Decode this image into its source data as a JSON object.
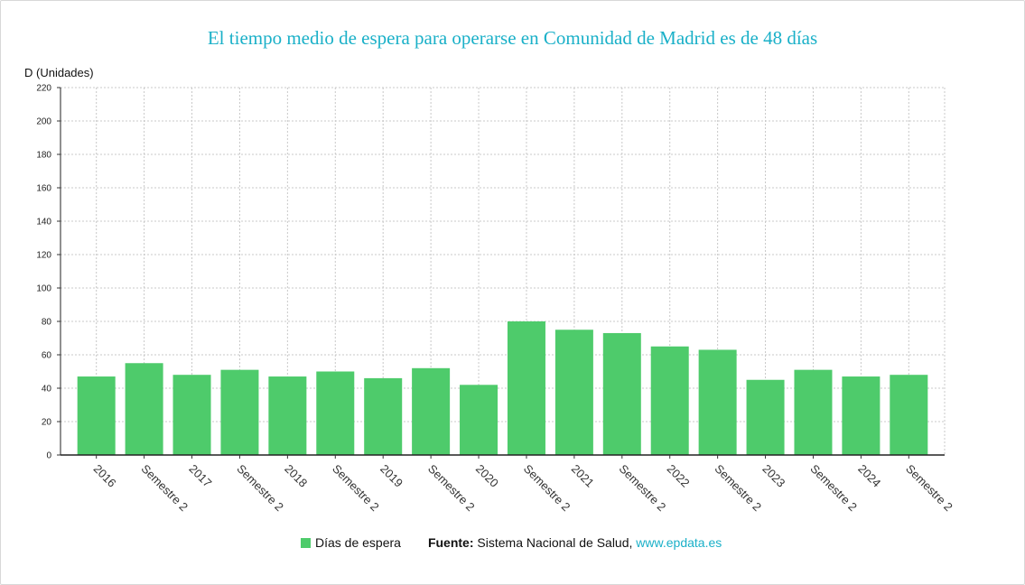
{
  "title": "El tiempo medio de espera para operarse en Comunidad de Madrid es de 48 días",
  "footer": {
    "source_label": "Fuente:",
    "source_text": "Sistema Nacional de Salud,",
    "source_link": "www.epdata.es"
  },
  "colors": {
    "bar": "#4ecb6b",
    "title": "#1ab0c8",
    "grid": "#c8c8c8"
  },
  "chart_data": {
    "type": "bar",
    "ylabel": "D (Unidades)",
    "ylim": [
      0,
      220
    ],
    "yticks": [
      0,
      20,
      40,
      60,
      80,
      100,
      120,
      140,
      160,
      180,
      200,
      220
    ],
    "grid": true,
    "legend_position": "bottom",
    "categories": [
      "2016",
      "Semestre 2",
      "2017",
      "Semestre 2",
      "2018",
      "Semestre 2",
      "2019",
      "Semestre 2",
      "2020",
      "Semestre 2",
      "2021",
      "Semestre 2",
      "2022",
      "Semestre 2",
      "2023",
      "Semestre 2",
      "2024",
      "Semestre 2"
    ],
    "series": [
      {
        "name": "Días de espera",
        "values": [
          47,
          55,
          48,
          51,
          47,
          50,
          46,
          52,
          42,
          80,
          75,
          73,
          65,
          63,
          45,
          51,
          47,
          48
        ]
      }
    ]
  }
}
